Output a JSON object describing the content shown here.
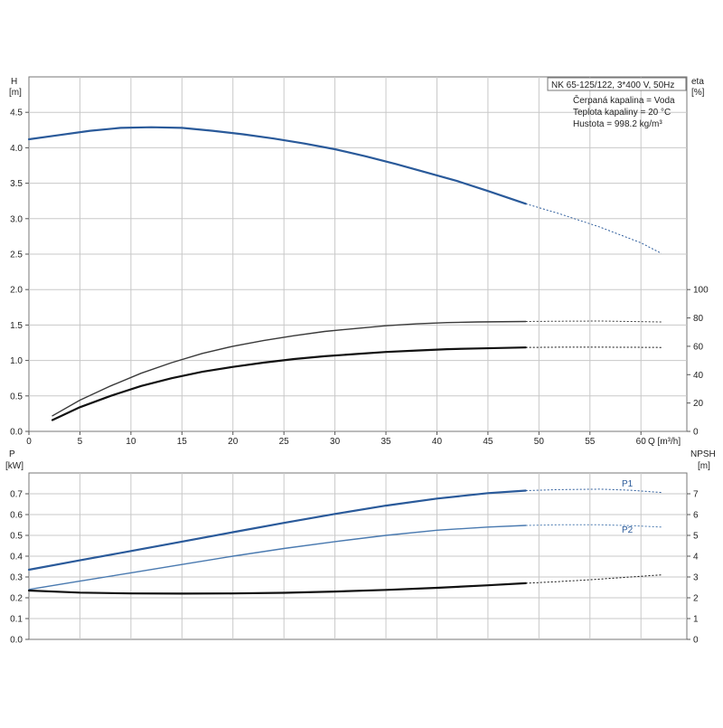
{
  "colors": {
    "head": "#2a5a9a",
    "eta_total": "#3a3a3a",
    "eta_pump": "#111111",
    "p1": "#2a5a9a",
    "p2": "#4a7ab0",
    "npsh": "#111111",
    "grid": "#c8c8c8"
  },
  "info_box": {
    "title": "NK 65-125/122, 3*400 V, 50Hz",
    "line1": "Čerpaná kapalina = Voda",
    "line2": "Teplota kapaliny = 20 °C",
    "line3": "Hustota = 998.2 kg/m³"
  },
  "chart_data": [
    {
      "type": "line",
      "panel": "top",
      "xlabel": "Q [m³/h]",
      "x_ticks": [
        "0",
        "5",
        "10",
        "15",
        "20",
        "25",
        "30",
        "35",
        "40",
        "45",
        "50",
        "55",
        "60"
      ],
      "xlim": [
        0,
        64.5
      ],
      "left_axis": {
        "label_line1": "H",
        "label_line2": "[m]",
        "ylim": [
          0,
          5.0
        ],
        "ticks": [
          "0.0",
          "0.5",
          "1.0",
          "1.5",
          "2.0",
          "2.5",
          "3.0",
          "3.5",
          "4.0",
          "4.5"
        ]
      },
      "right_axis": {
        "label_line1": "eta",
        "label_line2": "[%]",
        "ylim": [
          0,
          250
        ],
        "ticks": [
          "0",
          "20",
          "40",
          "60",
          "80",
          "100"
        ]
      },
      "series": [
        {
          "key": "head",
          "axis": "left",
          "solid": [
            [
              0,
              4.12
            ],
            [
              3,
              4.18
            ],
            [
              6,
              4.24
            ],
            [
              9,
              4.28
            ],
            [
              12,
              4.29
            ],
            [
              15,
              4.28
            ],
            [
              18,
              4.24
            ],
            [
              21,
              4.19
            ],
            [
              24,
              4.13
            ],
            [
              27,
              4.06
            ],
            [
              30,
              3.98
            ],
            [
              33,
              3.88
            ],
            [
              36,
              3.77
            ],
            [
              39,
              3.65
            ],
            [
              42,
              3.53
            ],
            [
              45,
              3.39
            ],
            [
              48.7,
              3.21
            ]
          ],
          "dashed": [
            [
              48.7,
              3.21
            ],
            [
              52,
              3.07
            ],
            [
              56,
              2.88
            ],
            [
              60,
              2.66
            ],
            [
              62,
              2.51
            ]
          ]
        },
        {
          "key": "eta_total",
          "axis": "right",
          "solid": [
            [
              2.3,
              11
            ],
            [
              5,
              22
            ],
            [
              8,
              32
            ],
            [
              11,
              41
            ],
            [
              14,
              48.5
            ],
            [
              17,
              55
            ],
            [
              20,
              60
            ],
            [
              23,
              64
            ],
            [
              26,
              67.5
            ],
            [
              29,
              70.5
            ],
            [
              32,
              72.5
            ],
            [
              35,
              74.5
            ],
            [
              38,
              75.8
            ],
            [
              41,
              76.7
            ],
            [
              44,
              77.2
            ],
            [
              48.7,
              77.5
            ]
          ],
          "dashed": [
            [
              48.7,
              77.5
            ],
            [
              52,
              77.7
            ],
            [
              56,
              77.8
            ],
            [
              59,
              77.5
            ],
            [
              62,
              77.2
            ]
          ]
        },
        {
          "key": "eta_pump",
          "axis": "right",
          "solid": [
            [
              2.3,
              8
            ],
            [
              5,
              17
            ],
            [
              8,
              25
            ],
            [
              11,
              32
            ],
            [
              14,
              37.5
            ],
            [
              17,
              42
            ],
            [
              20,
              45.5
            ],
            [
              23,
              48.5
            ],
            [
              26,
              51
            ],
            [
              29,
              53
            ],
            [
              32,
              54.5
            ],
            [
              35,
              56
            ],
            [
              38,
              57
            ],
            [
              41,
              58
            ],
            [
              44,
              58.5
            ],
            [
              48.7,
              59.2
            ]
          ],
          "dashed": [
            [
              48.7,
              59.2
            ],
            [
              52,
              59.4
            ],
            [
              56,
              59.4
            ],
            [
              59,
              59.3
            ],
            [
              62,
              59.2
            ]
          ]
        }
      ]
    },
    {
      "type": "line",
      "panel": "bottom",
      "xlim": [
        0,
        64.5
      ],
      "left_axis": {
        "label_line1": "P",
        "label_line2": "[kW]",
        "ylim": [
          0,
          0.8
        ],
        "ticks": [
          "0.0",
          "0.1",
          "0.2",
          "0.3",
          "0.4",
          "0.5",
          "0.6",
          "0.7"
        ]
      },
      "right_axis": {
        "label_line1": "NPSH",
        "label_line2": "[m]",
        "ylim": [
          0,
          8
        ],
        "ticks": [
          "0",
          "1",
          "2",
          "3",
          "4",
          "5",
          "6",
          "7"
        ]
      },
      "series": [
        {
          "key": "p1",
          "axis": "left",
          "name": "P1",
          "solid": [
            [
              0,
              0.335
            ],
            [
              5,
              0.38
            ],
            [
              10,
              0.425
            ],
            [
              15,
              0.47
            ],
            [
              20,
              0.515
            ],
            [
              25,
              0.56
            ],
            [
              30,
              0.603
            ],
            [
              35,
              0.643
            ],
            [
              40,
              0.677
            ],
            [
              45,
              0.703
            ],
            [
              48.7,
              0.715
            ]
          ],
          "dashed": [
            [
              48.7,
              0.715
            ],
            [
              52,
              0.72
            ],
            [
              56,
              0.722
            ],
            [
              59,
              0.717
            ],
            [
              62,
              0.706
            ]
          ]
        },
        {
          "key": "p2",
          "axis": "left",
          "name": "P2",
          "solid": [
            [
              0,
              0.24
            ],
            [
              5,
              0.28
            ],
            [
              10,
              0.32
            ],
            [
              15,
              0.36
            ],
            [
              20,
              0.4
            ],
            [
              25,
              0.437
            ],
            [
              30,
              0.47
            ],
            [
              35,
              0.5
            ],
            [
              40,
              0.525
            ],
            [
              45,
              0.54
            ],
            [
              48.7,
              0.548
            ]
          ],
          "dashed": [
            [
              48.7,
              0.548
            ],
            [
              52,
              0.551
            ],
            [
              56,
              0.551
            ],
            [
              59,
              0.547
            ],
            [
              62,
              0.54
            ]
          ]
        },
        {
          "key": "npsh",
          "axis": "right",
          "solid": [
            [
              0,
              2.35
            ],
            [
              5,
              2.25
            ],
            [
              10,
              2.21
            ],
            [
              15,
              2.2
            ],
            [
              20,
              2.21
            ],
            [
              25,
              2.24
            ],
            [
              30,
              2.3
            ],
            [
              35,
              2.38
            ],
            [
              40,
              2.48
            ],
            [
              45,
              2.6
            ],
            [
              48.7,
              2.7
            ]
          ],
          "dashed": [
            [
              48.7,
              2.7
            ],
            [
              52,
              2.78
            ],
            [
              56,
              2.9
            ],
            [
              59,
              3.0
            ],
            [
              62,
              3.1
            ]
          ]
        }
      ]
    }
  ]
}
